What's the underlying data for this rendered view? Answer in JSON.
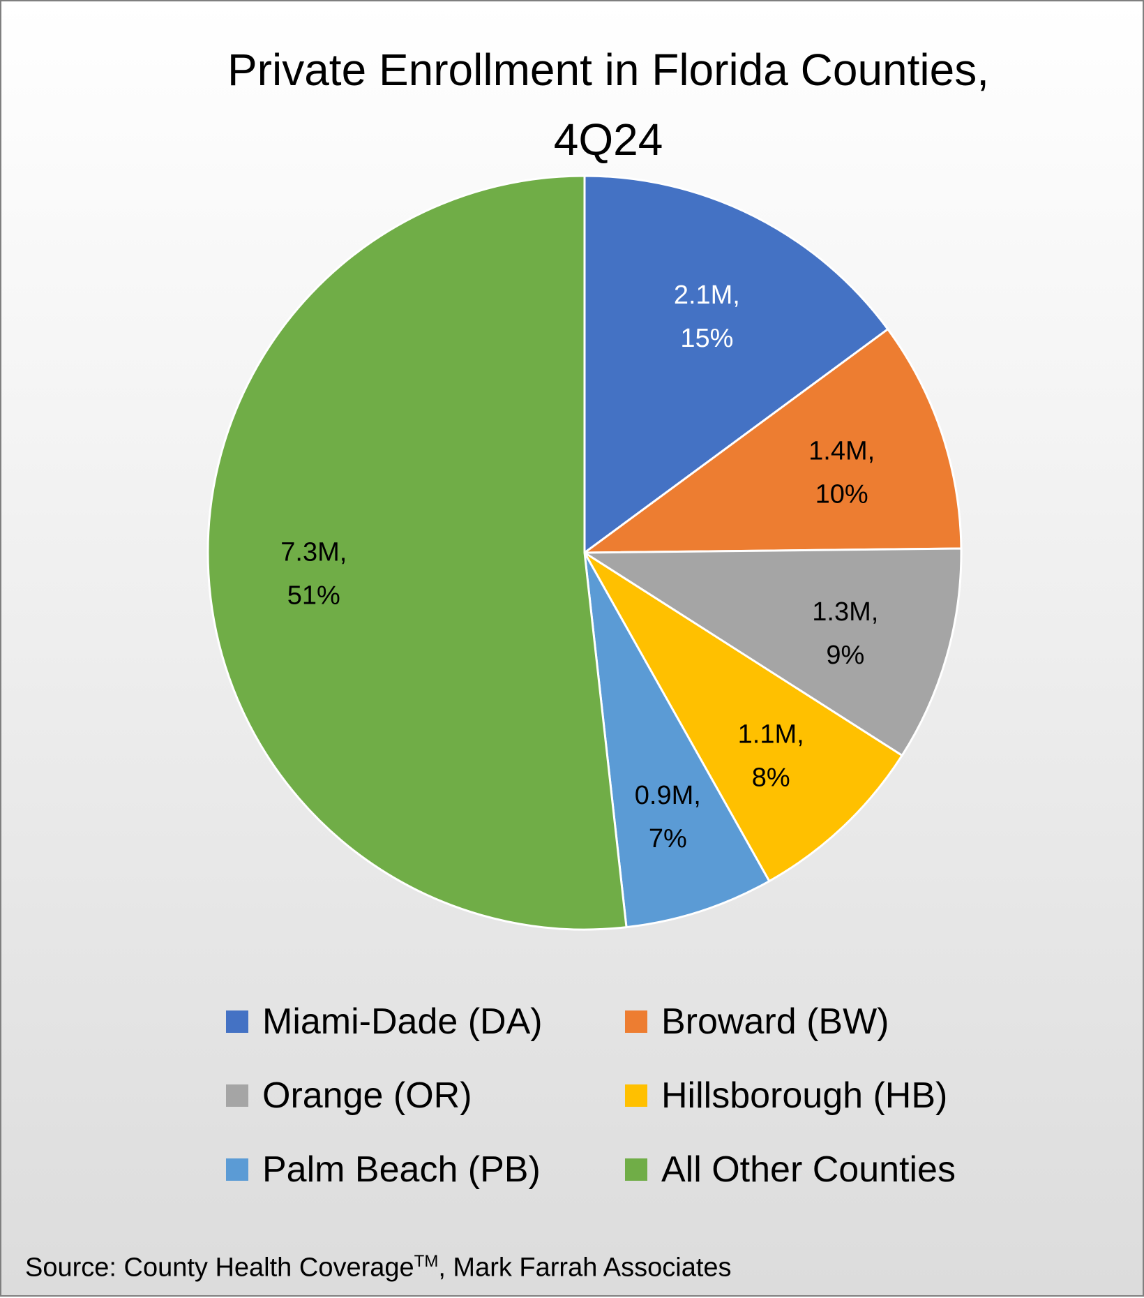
{
  "chart_data": {
    "type": "pie",
    "title": "Private Enrollment in Florida Counties, 4Q24",
    "slices": [
      {
        "name": "Miami-Dade (DA)",
        "value": 2.1,
        "value_label": "2.1M,",
        "percent_label": "15%",
        "color": "#4472C4",
        "label_color": "#ffffff"
      },
      {
        "name": "Broward (BW)",
        "value": 1.4,
        "value_label": "1.4M,",
        "percent_label": "10%",
        "color": "#ED7D31",
        "label_color": "#000000"
      },
      {
        "name": "Orange (OR)",
        "value": 1.3,
        "value_label": "1.3M,",
        "percent_label": "9%",
        "color": "#A5A5A5",
        "label_color": "#000000"
      },
      {
        "name": "Hillsborough (HB)",
        "value": 1.1,
        "value_label": "1.1M,",
        "percent_label": "8%",
        "color": "#FFC000",
        "label_color": "#000000"
      },
      {
        "name": "Palm Beach (PB)",
        "value": 0.9,
        "value_label": "0.9M,",
        "percent_label": "7%",
        "color": "#5B9BD5",
        "label_color": "#000000"
      },
      {
        "name": "All Other Counties",
        "value": 7.3,
        "value_label": "7.3M,",
        "percent_label": "51%",
        "color": "#70AD47",
        "label_color": "#000000"
      }
    ],
    "legend_position": "bottom",
    "source_text": "Source: County Health Coverage",
    "source_superscript": "TM",
    "source_suffix": ", Mark Farrah Associates"
  }
}
